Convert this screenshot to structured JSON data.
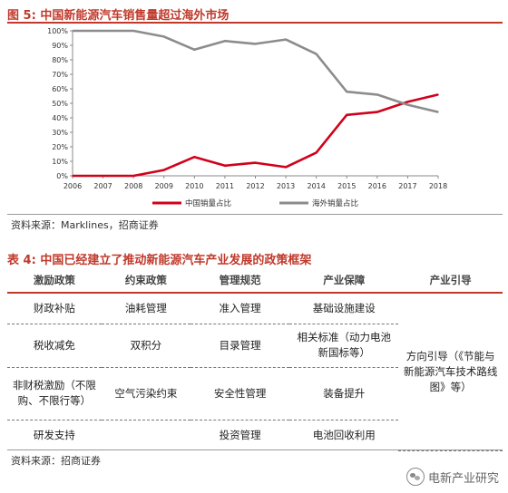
{
  "figure": {
    "label": "图 5:",
    "title": "中国新能源汽车销售量超过海外市场",
    "source": "资料来源：Marklines，招商证券"
  },
  "chart_data": {
    "type": "line",
    "x": [
      "2006",
      "2007",
      "2008",
      "2009",
      "2010",
      "2011",
      "2012",
      "2013",
      "2014",
      "2015",
      "2016",
      "2017",
      "2018"
    ],
    "yticks": [
      "0%",
      "10%",
      "20%",
      "30%",
      "40%",
      "50%",
      "60%",
      "70%",
      "80%",
      "90%",
      "100%"
    ],
    "ylim": [
      0,
      100
    ],
    "grid": false,
    "legend_position": "bottom",
    "series": [
      {
        "name": "中国销量占比",
        "color": "#d0021b",
        "values": [
          0,
          0,
          0,
          4,
          13,
          7,
          9,
          6,
          16,
          42,
          44,
          51,
          56
        ]
      },
      {
        "name": "海外销量占比",
        "color": "#8c8c8c",
        "values": [
          100,
          100,
          100,
          96,
          87,
          93,
          91,
          94,
          84,
          58,
          56,
          49,
          44
        ]
      }
    ]
  },
  "table": {
    "label": "表 4:",
    "title": "中国已经建立了推动新能源汽车产业发展的政策框架",
    "headers": [
      "激励政策",
      "约束政策",
      "管理规范",
      "产业保障",
      "产业引导"
    ],
    "rows": [
      [
        "财政补贴",
        "油耗管理",
        "准入管理",
        "基础设施建设"
      ],
      [
        "税收减免",
        "双积分",
        "目录管理",
        "相关标准（动力电池新国标等）"
      ],
      [
        "非财税激励（不限购、不限行等）",
        "空气污染约束",
        "安全性管理",
        "装备提升"
      ],
      [
        "研发支持",
        "",
        "投资管理",
        "电池回收利用"
      ]
    ],
    "guidance": "方向引导（《节能与新能源汽车技术路线图》等）",
    "source": "资料来源：招商证券"
  },
  "watermark": "电新产业研究"
}
